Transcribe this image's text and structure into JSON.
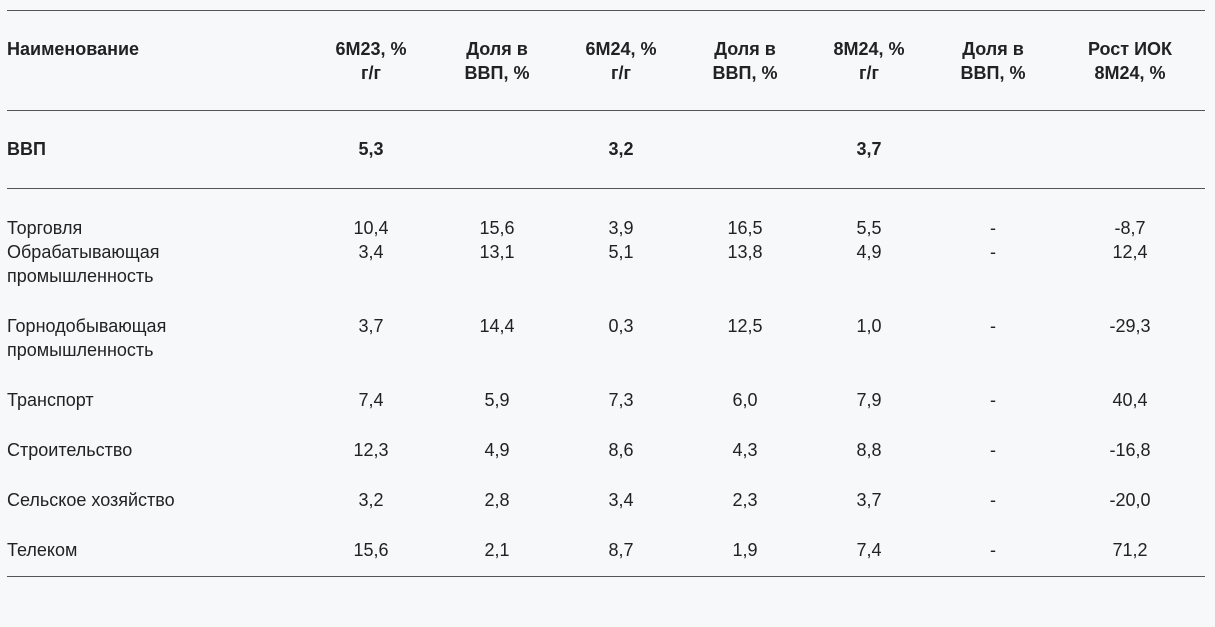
{
  "headers": [
    "Наименование",
    "6М23, %\nг/г",
    "Доля в\nВВП, %",
    "6М24, %\nг/г",
    "Доля в\nВВП, %",
    "8М24, %\nг/г",
    "Доля в\nВВП, %",
    "Рост ИОК\n8М24, %"
  ],
  "gdp": {
    "name": "ВВП",
    "values": [
      "5,3",
      "",
      "3,2",
      "",
      "3,7",
      "",
      ""
    ]
  },
  "rows": [
    {
      "name": "Торговля",
      "values": [
        "10,4",
        "15,6",
        "3,9",
        "16,5",
        "5,5",
        "-",
        "-8,7"
      ]
    },
    {
      "name": "Обрабатывающая промышленность",
      "values": [
        "3,4",
        "13,1",
        "5,1",
        "13,8",
        "4,9",
        "-",
        "12,4"
      ]
    },
    {
      "name": "Горнодобывающая промышленность",
      "values": [
        "3,7",
        "14,4",
        "0,3",
        "12,5",
        "1,0",
        "-",
        "-29,3"
      ]
    },
    {
      "name": "Транспорт",
      "values": [
        "7,4",
        "5,9",
        "7,3",
        "6,0",
        "7,9",
        "-",
        "40,4"
      ]
    },
    {
      "name": "Строительство",
      "values": [
        "12,3",
        "4,9",
        "8,6",
        "4,3",
        "8,8",
        "-",
        "-16,8"
      ]
    },
    {
      "name": "Сельское хозяйство",
      "values": [
        "3,2",
        "2,8",
        "3,4",
        "2,3",
        "3,7",
        "-",
        "-20,0"
      ]
    },
    {
      "name": "Телеком",
      "values": [
        "15,6",
        "2,1",
        "8,7",
        "1,9",
        "7,4",
        "-",
        "71,2"
      ]
    }
  ]
}
